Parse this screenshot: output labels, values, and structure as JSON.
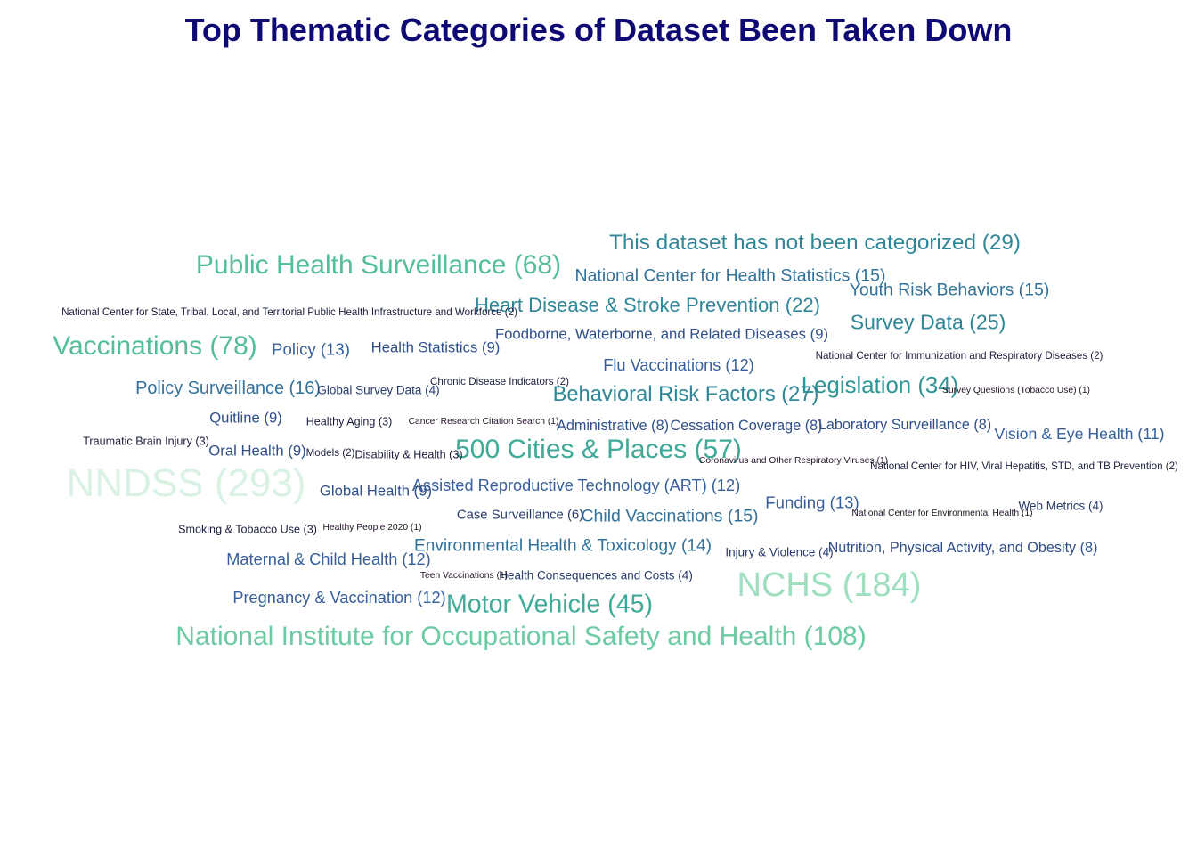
{
  "chart_data": {
    "type": "wordcloud",
    "title": "Top Thematic Categories of Dataset Been Taken Down",
    "words": [
      {
        "label": "NNDSS (293)",
        "name": "NNDSS",
        "count": 293
      },
      {
        "label": "NCHS (184)",
        "name": "NCHS",
        "count": 184
      },
      {
        "label": "National Institute for Occupational Safety and Health (108)",
        "name": "National Institute for Occupational Safety and Health",
        "count": 108
      },
      {
        "label": "Vaccinations (78)",
        "name": "Vaccinations",
        "count": 78
      },
      {
        "label": "Public Health Surveillance (68)",
        "name": "Public Health Surveillance",
        "count": 68
      },
      {
        "label": "500 Cities & Places (57)",
        "name": "500 Cities & Places",
        "count": 57
      },
      {
        "label": "Motor Vehicle (45)",
        "name": "Motor Vehicle",
        "count": 45
      },
      {
        "label": "Legislation (34)",
        "name": "Legislation",
        "count": 34
      },
      {
        "label": "This dataset has not been categorized (29)",
        "name": "This dataset has not been categorized",
        "count": 29
      },
      {
        "label": "Behavioral Risk Factors (27)",
        "name": "Behavioral Risk Factors",
        "count": 27
      },
      {
        "label": "Survey Data (25)",
        "name": "Survey Data",
        "count": 25
      },
      {
        "label": "Heart Disease & Stroke Prevention (22)",
        "name": "Heart Disease & Stroke Prevention",
        "count": 22
      },
      {
        "label": "Policy Surveillance (16)",
        "name": "Policy Surveillance",
        "count": 16
      },
      {
        "label": "National Center for Health Statistics (15)",
        "name": "National Center for Health Statistics",
        "count": 15
      },
      {
        "label": "Youth Risk Behaviors (15)",
        "name": "Youth Risk Behaviors",
        "count": 15
      },
      {
        "label": "Child Vaccinations (15)",
        "name": "Child Vaccinations",
        "count": 15
      },
      {
        "label": "Environmental Health & Toxicology (14)",
        "name": "Environmental Health & Toxicology",
        "count": 14
      },
      {
        "label": "Policy (13)",
        "name": "Policy",
        "count": 13
      },
      {
        "label": "Funding (13)",
        "name": "Funding",
        "count": 13
      },
      {
        "label": "Flu Vaccinations (12)",
        "name": "Flu Vaccinations",
        "count": 12
      },
      {
        "label": "Assisted Reproductive Technology (ART) (12)",
        "name": "Assisted Reproductive Technology (ART)",
        "count": 12
      },
      {
        "label": "Maternal & Child Health (12)",
        "name": "Maternal & Child Health",
        "count": 12
      },
      {
        "label": "Pregnancy & Vaccination (12)",
        "name": "Pregnancy & Vaccination",
        "count": 12
      },
      {
        "label": "Vision & Eye Health (11)",
        "name": "Vision & Eye Health",
        "count": 11
      },
      {
        "label": "Health Statistics (9)",
        "name": "Health Statistics",
        "count": 9
      },
      {
        "label": "Foodborne, Waterborne, and Related Diseases (9)",
        "name": "Foodborne, Waterborne, and Related Diseases",
        "count": 9
      },
      {
        "label": "Quitline (9)",
        "name": "Quitline",
        "count": 9
      },
      {
        "label": "Oral Health (9)",
        "name": "Oral Health",
        "count": 9
      },
      {
        "label": "Global Health (9)",
        "name": "Global Health",
        "count": 9
      },
      {
        "label": "Administrative (8)",
        "name": "Administrative",
        "count": 8
      },
      {
        "label": "Cessation Coverage (8)",
        "name": "Cessation Coverage",
        "count": 8
      },
      {
        "label": "Laboratory Surveillance (8)",
        "name": "Laboratory Surveillance",
        "count": 8
      },
      {
        "label": "Nutrition, Physical Activity, and Obesity (8)",
        "name": "Nutrition, Physical Activity, and Obesity",
        "count": 8
      },
      {
        "label": "Case Surveillance (6)",
        "name": "Case Surveillance",
        "count": 6
      },
      {
        "label": "Global Survey Data (4)",
        "name": "Global Survey Data",
        "count": 4
      },
      {
        "label": "Web Metrics (4)",
        "name": "Web Metrics",
        "count": 4
      },
      {
        "label": "Injury & Violence (4)",
        "name": "Injury & Violence",
        "count": 4
      },
      {
        "label": "Health Consequences and Costs (4)",
        "name": "Health Consequences and Costs",
        "count": 4
      },
      {
        "label": "Healthy Aging (3)",
        "name": "Healthy Aging",
        "count": 3
      },
      {
        "label": "Traumatic Brain Injury (3)",
        "name": "Traumatic Brain Injury",
        "count": 3
      },
      {
        "label": "Disability & Health (3)",
        "name": "Disability & Health",
        "count": 3
      },
      {
        "label": "Smoking & Tobacco Use (3)",
        "name": "Smoking & Tobacco Use",
        "count": 3
      },
      {
        "label": "National Center for State, Tribal, Local, and Territorial Public Health Infrastructure and Workforce (2)",
        "name": "National Center for State, Tribal, Local, and Territorial Public Health Infrastructure and Workforce",
        "count": 2
      },
      {
        "label": "National Center for Immunization and Respiratory Diseases (2)",
        "name": "National Center for Immunization and Respiratory Diseases",
        "count": 2
      },
      {
        "label": "Chronic Disease Indicators (2)",
        "name": "Chronic Disease Indicators",
        "count": 2
      },
      {
        "label": "Models (2)",
        "name": "Models",
        "count": 2
      },
      {
        "label": "National Center for HIV, Viral Hepatitis, STD, and TB Prevention (2)",
        "name": "National Center for HIV, Viral Hepatitis, STD, and TB Prevention",
        "count": 2
      },
      {
        "label": "Survey Questions (Tobacco Use) (1)",
        "name": "Survey Questions (Tobacco Use)",
        "count": 1
      },
      {
        "label": "Cancer Research Citation Search (1)",
        "name": "Cancer Research Citation Search",
        "count": 1
      },
      {
        "label": "Coronavirus and Other Respiratory Viruses (1)",
        "name": "Coronavirus and Other Respiratory Viruses",
        "count": 1
      },
      {
        "label": "National Center for Environmental Health (1)",
        "name": "National Center for Environmental Health",
        "count": 1
      },
      {
        "label": "Healthy People 2020 (1)",
        "name": "Healthy People 2020",
        "count": 1
      },
      {
        "label": "Teen Vaccinations (1)",
        "name": "Teen Vaccinations",
        "count": 1
      }
    ]
  },
  "colors": {
    "title": "#0f0a73",
    "background": "#ffffff"
  }
}
